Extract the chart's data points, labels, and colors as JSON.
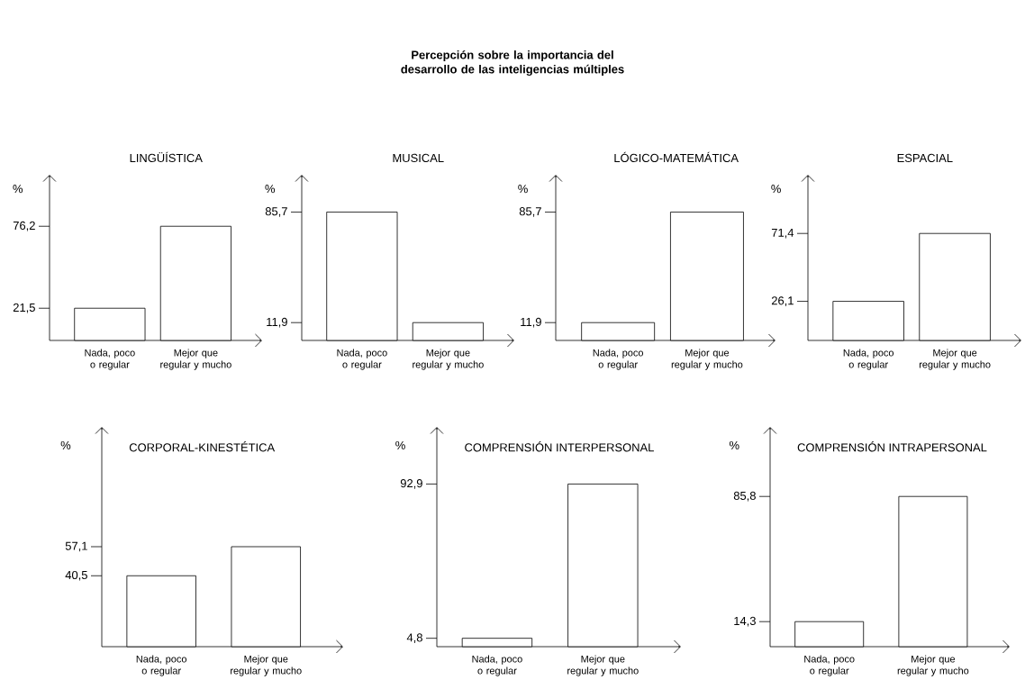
{
  "chart_data": [
    {
      "type": "other",
      "title": "Percepción sobre  la importancia del desarrollo de las inteligencias múltiples"
    },
    {
      "type": "bar",
      "title": "LINGÜÍSTICA",
      "ylabel": "%",
      "categories": [
        "Nada,  poco o regular",
        "Mejor que regular y  mucho"
      ],
      "values": [
        21.5,
        76.2
      ],
      "color": "#ffffff",
      "ylim": [
        0,
        110
      ],
      "yticks": [
        {
          "value": 21.5,
          "label": "21,5"
        },
        {
          "value": 76.2,
          "label": "76,2"
        }
      ]
    },
    {
      "type": "bar",
      "title": "MUSICAL",
      "ylabel": "%",
      "categories": [
        "Nada,  poco o regular",
        "Mejor que regular y  mucho"
      ],
      "values": [
        85.7,
        11.9
      ],
      "color": "#ffffff",
      "ylim": [
        0,
        110
      ],
      "yticks": [
        {
          "value": 11.9,
          "label": "11,9"
        },
        {
          "value": 85.7,
          "label": "85,7"
        }
      ]
    },
    {
      "type": "bar",
      "title": "LÓGICO-MATEMÁTICA",
      "ylabel": "%",
      "categories": [
        "Nada,  poco o regular",
        "Mejor que regular y  mucho"
      ],
      "values": [
        11.9,
        85.7
      ],
      "color": "#ffffff",
      "ylim": [
        0,
        110
      ],
      "yticks": [
        {
          "value": 11.9,
          "label": "11,9"
        },
        {
          "value": 85.7,
          "label": "85,7"
        }
      ]
    },
    {
      "type": "bar",
      "title": "ESPACIAL",
      "ylabel": "%",
      "categories": [
        "Nada,  poco o regular",
        "Mejor que regular y  mucho"
      ],
      "values": [
        26.1,
        71.4
      ],
      "color": "#ffffff",
      "ylim": [
        0,
        110
      ],
      "yticks": [
        {
          "value": 26.1,
          "label": "26,1"
        },
        {
          "value": 71.4,
          "label": "71,4"
        }
      ]
    },
    {
      "type": "bar",
      "title": "CORPORAL-KINESTÉTICA",
      "ylabel": "%",
      "categories": [
        "Nada,  poco o regular",
        "Mejor que regular y  mucho"
      ],
      "values": [
        40.5,
        57.1
      ],
      "color": "#ffffff",
      "ylim": [
        0,
        125
      ],
      "yticks": [
        {
          "value": 40.5,
          "label": "40,5"
        },
        {
          "value": 57.1,
          "label": "57,1"
        }
      ]
    },
    {
      "type": "bar",
      "title": "COMPRENSIÓN INTERPERSONAL",
      "ylabel": "%",
      "categories": [
        "Nada,  poco o regular",
        "Mejor que regular y  mucho"
      ],
      "values": [
        4.8,
        92.9
      ],
      "color": "#ffffff",
      "ylim": [
        0,
        125
      ],
      "yticks": [
        {
          "value": 4.8,
          "label": "4,8"
        },
        {
          "value": 92.9,
          "label": "92,9"
        }
      ]
    },
    {
      "type": "bar",
      "title": "COMPRENSIÓN INTRAPERSONAL",
      "ylabel": "%",
      "categories": [
        "Nada,  poco o regular",
        "Mejor que regular y  mucho"
      ],
      "values": [
        14.3,
        85.8
      ],
      "color": "#ffffff",
      "ylim": [
        0,
        125
      ],
      "yticks": [
        {
          "value": 14.3,
          "label": "14,3"
        },
        {
          "value": 85.8,
          "label": "85,8"
        }
      ]
    }
  ]
}
